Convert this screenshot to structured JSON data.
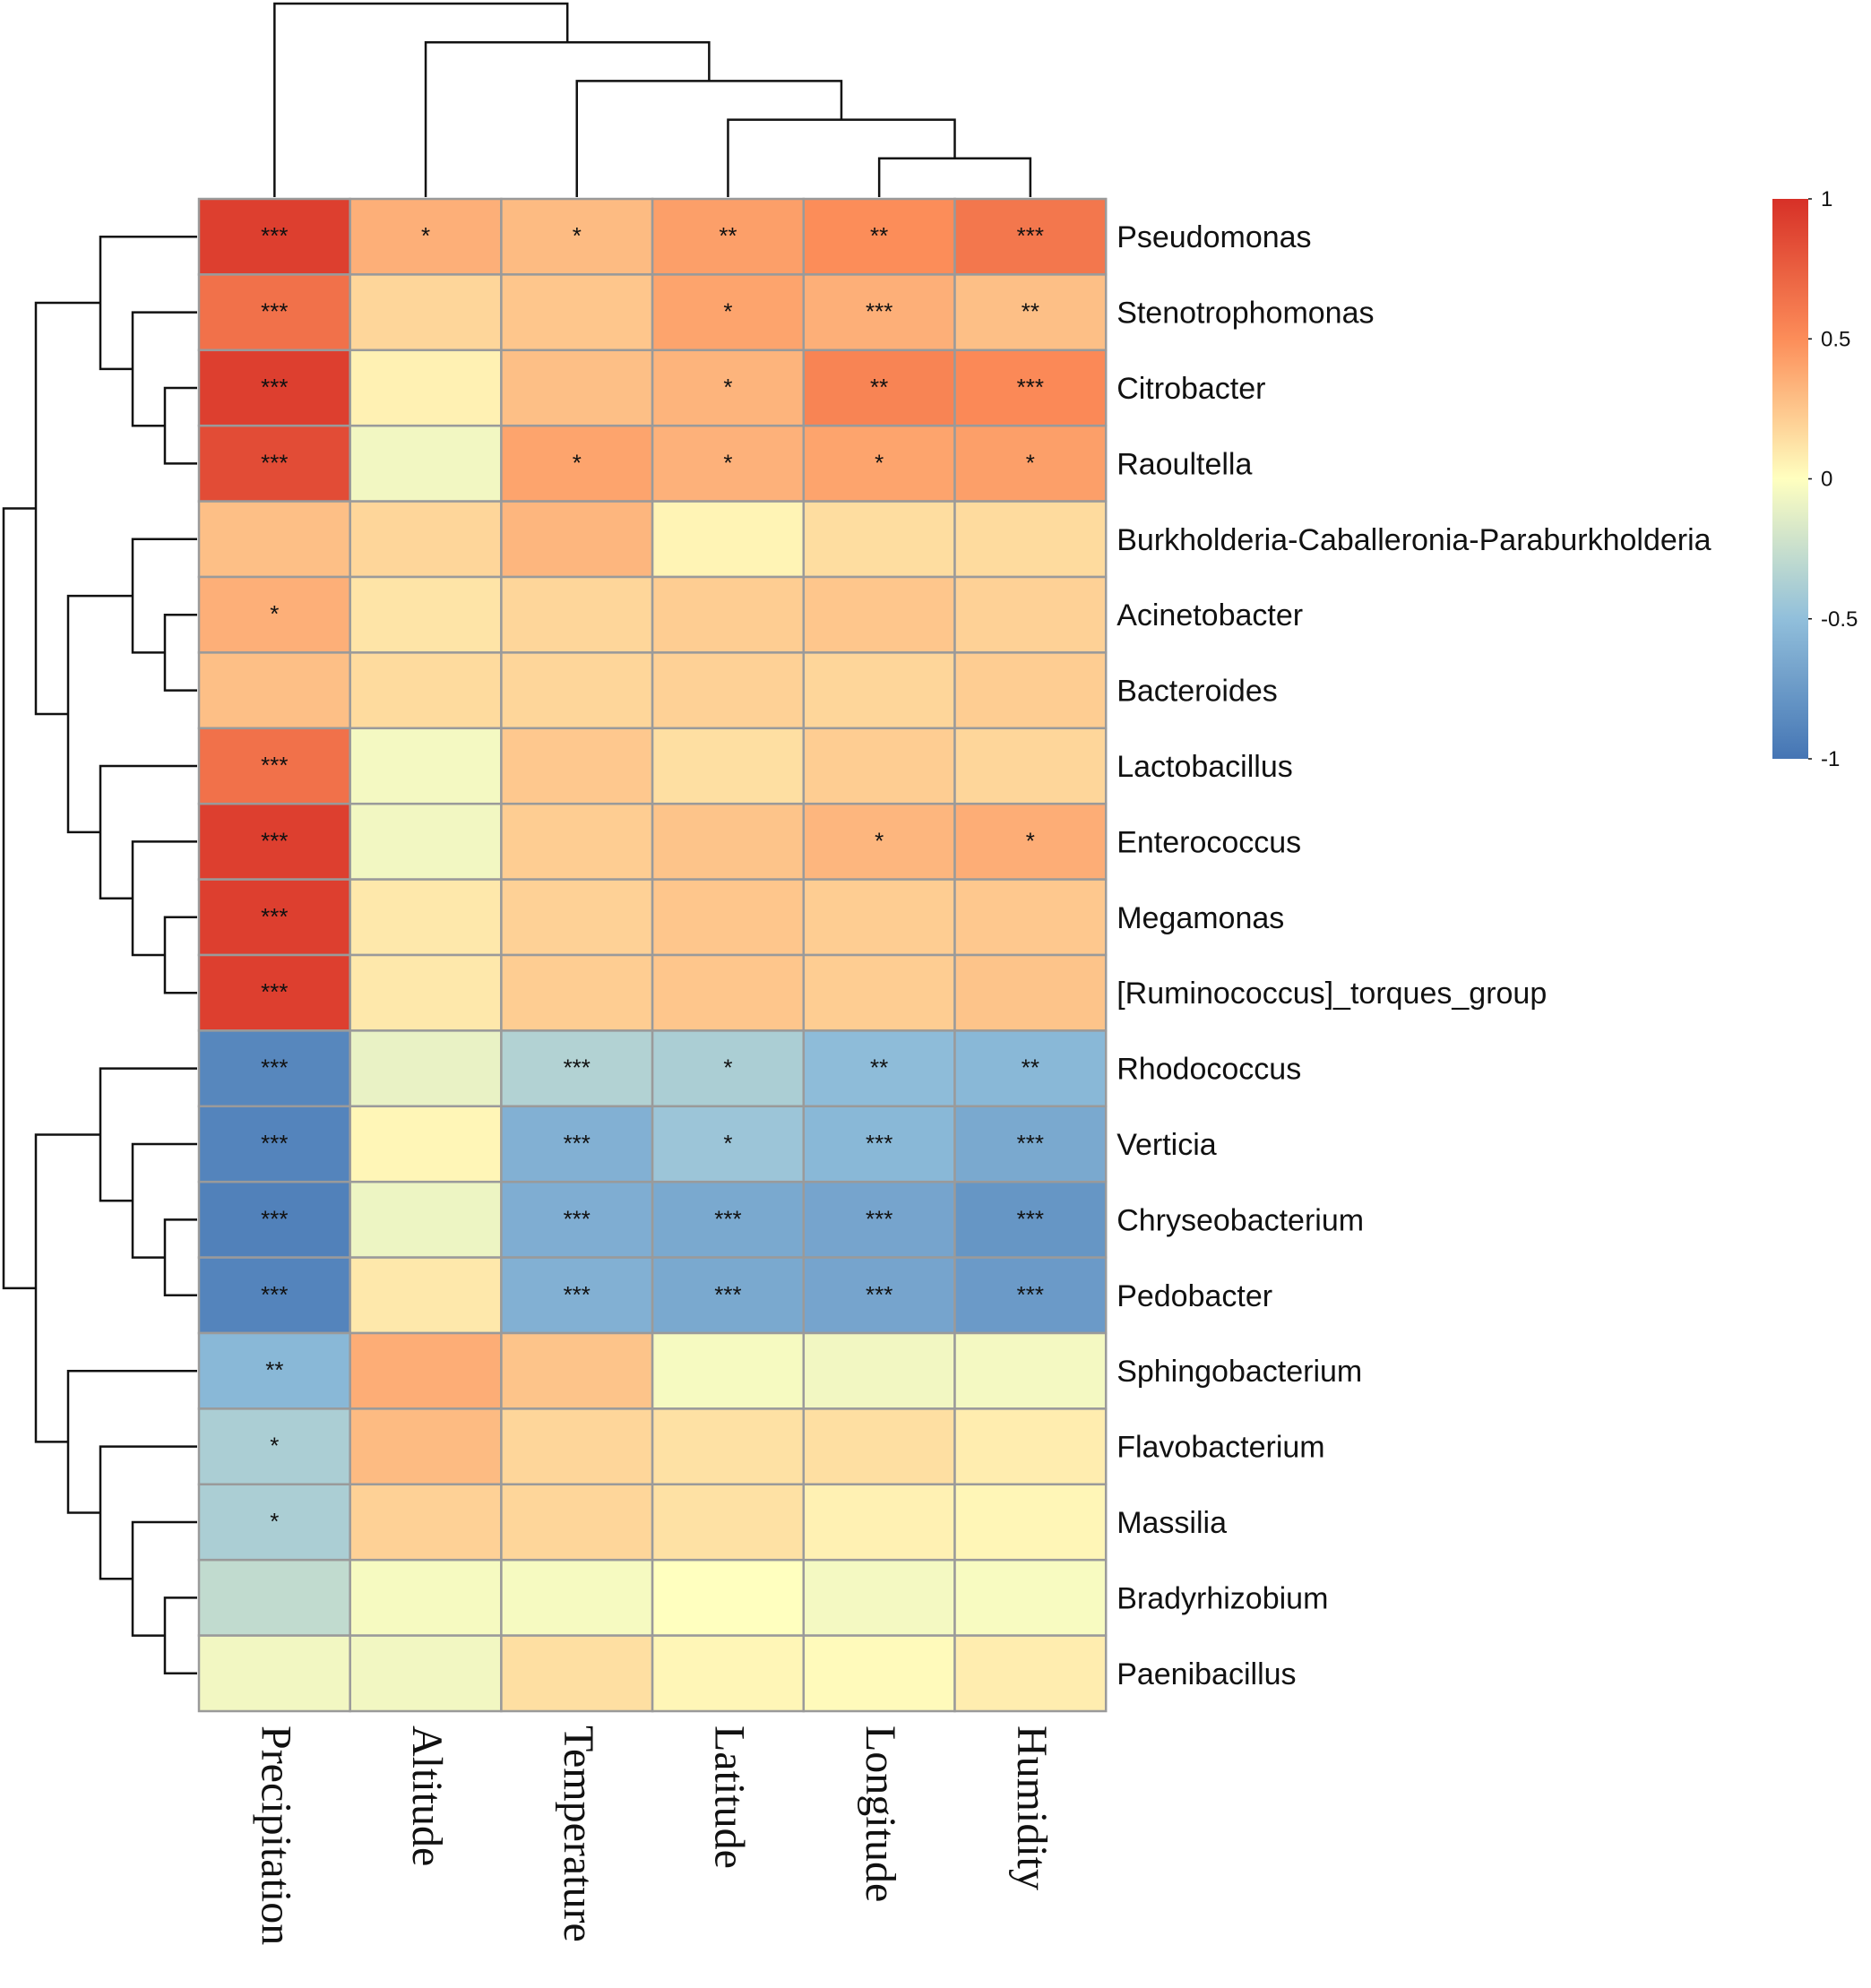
{
  "chart_data": {
    "type": "heatmap",
    "title": "",
    "columns": [
      "Precipitation",
      "Altitude",
      "Temperature",
      "Latitude",
      "Longitude",
      "Humidity"
    ],
    "rows": [
      "Pseudomonas",
      "Stenotrophomonas",
      "Citrobacter",
      "Raoultella",
      "Burkholderia-Caballeronia-Paraburkholderia",
      "Acinetobacter",
      "Bacteroides",
      "Lactobacillus",
      "Enterococcus",
      "Megamonas",
      "[Ruminococcus]_torques_group",
      "Rhodococcus",
      "Verticia",
      "Chryseobacterium",
      "Pedobacter",
      "Sphingobacterium",
      "Flavobacterium",
      "Massilia",
      "Bradyrhizobium",
      "Paenibacillus"
    ],
    "values": [
      [
        0.92,
        0.35,
        0.3,
        0.42,
        0.5,
        0.62
      ],
      [
        0.65,
        0.18,
        0.25,
        0.4,
        0.35,
        0.28
      ],
      [
        0.92,
        0.06,
        0.28,
        0.33,
        0.55,
        0.52
      ],
      [
        0.85,
        -0.06,
        0.4,
        0.34,
        0.4,
        0.42
      ],
      [
        0.28,
        0.18,
        0.32,
        0.05,
        0.15,
        0.16
      ],
      [
        0.35,
        0.12,
        0.18,
        0.22,
        0.25,
        0.2
      ],
      [
        0.28,
        0.16,
        0.18,
        0.2,
        0.18,
        0.22
      ],
      [
        0.65,
        -0.05,
        0.24,
        0.14,
        0.22,
        0.18
      ],
      [
        0.92,
        -0.06,
        0.22,
        0.26,
        0.32,
        0.36
      ],
      [
        0.92,
        0.1,
        0.2,
        0.25,
        0.22,
        0.24
      ],
      [
        0.92,
        0.1,
        0.22,
        0.25,
        0.22,
        0.26
      ],
      [
        -0.88,
        -0.1,
        -0.35,
        -0.38,
        -0.52,
        -0.55
      ],
      [
        -0.9,
        0.04,
        -0.6,
        -0.45,
        -0.55,
        -0.65
      ],
      [
        -0.92,
        -0.08,
        -0.62,
        -0.65,
        -0.68,
        -0.78
      ],
      [
        -0.9,
        0.1,
        -0.6,
        -0.65,
        -0.68,
        -0.75
      ],
      [
        -0.55,
        0.36,
        0.26,
        -0.04,
        -0.06,
        -0.05
      ],
      [
        -0.38,
        0.3,
        0.18,
        0.13,
        0.14,
        0.08
      ],
      [
        -0.38,
        0.2,
        0.18,
        0.13,
        0.06,
        0.04
      ],
      [
        -0.28,
        -0.04,
        -0.04,
        0.0,
        -0.05,
        -0.03
      ],
      [
        -0.06,
        -0.06,
        0.14,
        0.04,
        0.02,
        0.08
      ]
    ],
    "annotations": [
      [
        "***",
        "*",
        "*",
        "**",
        "**",
        "***"
      ],
      [
        "***",
        "",
        "",
        "*",
        "***",
        "**"
      ],
      [
        "***",
        "",
        "",
        "*",
        "**",
        "***"
      ],
      [
        "***",
        "",
        "*",
        "*",
        "*",
        "*"
      ],
      [
        "",
        "",
        "",
        "",
        "",
        ""
      ],
      [
        "*",
        "",
        "",
        "",
        "",
        ""
      ],
      [
        "",
        "",
        "",
        "",
        "",
        ""
      ],
      [
        "***",
        "",
        "",
        "",
        "",
        ""
      ],
      [
        "***",
        "",
        "",
        "",
        "*",
        "*"
      ],
      [
        "***",
        "",
        "",
        "",
        "",
        ""
      ],
      [
        "***",
        "",
        "",
        "",
        "",
        ""
      ],
      [
        "***",
        "",
        "***",
        "*",
        "**",
        "**"
      ],
      [
        "***",
        "",
        "***",
        "*",
        "***",
        "***"
      ],
      [
        "***",
        "",
        "***",
        "***",
        "***",
        "***"
      ],
      [
        "***",
        "",
        "***",
        "***",
        "***",
        "***"
      ],
      [
        "**",
        "",
        "",
        "",
        "",
        ""
      ],
      [
        "*",
        "",
        "",
        "",
        "",
        ""
      ],
      [
        "*",
        "",
        "",
        "",
        "",
        ""
      ],
      [
        "",
        "",
        "",
        "",
        "",
        ""
      ],
      [
        "",
        "",
        "",
        "",
        "",
        ""
      ]
    ],
    "color_scale": {
      "range": [
        -1,
        1
      ],
      "ticks": [
        "1",
        "0.5",
        "0",
        "-0.5",
        "-1"
      ],
      "tick_values": [
        1,
        0.5,
        0,
        -0.5,
        -1
      ],
      "low_color": "#4575b4",
      "mid_color": "#ffffbf",
      "high_color": "#d73027",
      "legend_position": "top-right"
    },
    "column_dendrogram": [
      [
        5,
        4
      ],
      [
        6,
        3
      ],
      [
        7,
        2
      ],
      [
        8,
        1
      ],
      [
        9,
        0
      ]
    ],
    "row_dendrogram": [
      [
        2,
        3
      ],
      [
        20,
        1
      ],
      [
        21,
        0
      ],
      [
        5,
        6
      ],
      [
        23,
        4
      ],
      [
        9,
        10
      ],
      [
        25,
        8
      ],
      [
        26,
        7
      ],
      [
        24,
        27
      ],
      [
        22,
        28
      ],
      [
        13,
        14
      ],
      [
        12,
        30
      ],
      [
        11,
        31
      ],
      [
        18,
        19
      ],
      [
        17,
        33
      ],
      [
        16,
        34
      ],
      [
        15,
        35
      ],
      [
        32,
        36
      ],
      [
        29,
        37
      ]
    ]
  }
}
